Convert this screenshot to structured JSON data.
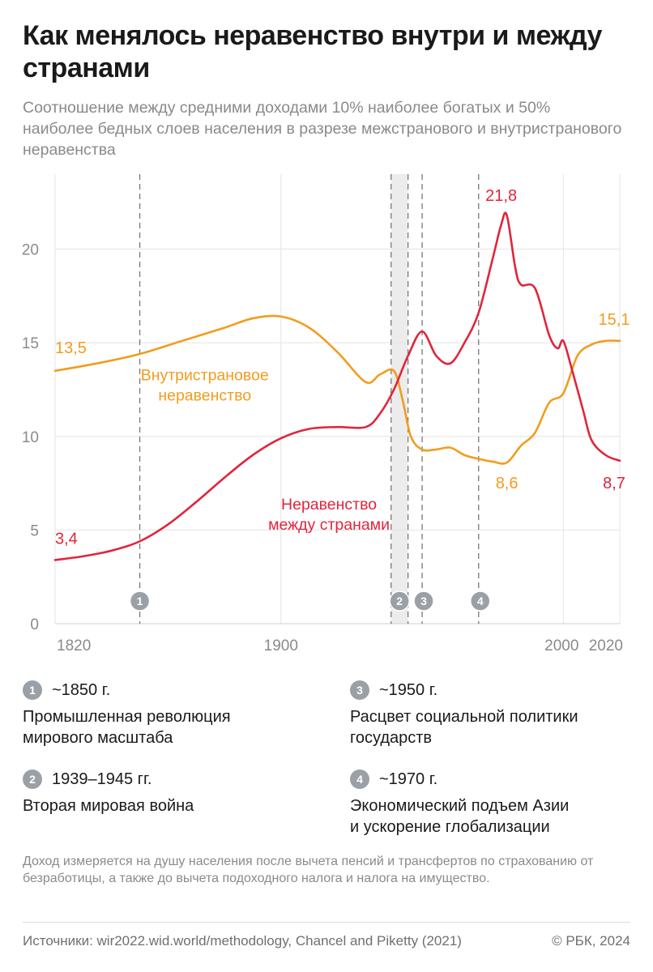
{
  "header": {
    "title": "Как менялось неравенство внутри и между странами",
    "subtitle": "Соотношение между средними доходами 10% наиболее богатых и 50% наиболее бедных слоев населения в разрезе межстранового и внутристранового неравенства"
  },
  "chart_data": {
    "type": "line",
    "xlim": [
      1820,
      2020
    ],
    "ylim": [
      0,
      24
    ],
    "x_ticks": [
      "1820",
      "1900",
      "2000",
      "2020"
    ],
    "y_ticks": [
      "0",
      "5",
      "10",
      "15",
      "20"
    ],
    "grid": true,
    "series": [
      {
        "name": "Внутристрановое неравенство",
        "color": "#f39c1e",
        "x": [
          1820,
          1835,
          1850,
          1865,
          1880,
          1890,
          1900,
          1910,
          1920,
          1930,
          1935,
          1940,
          1943,
          1946,
          1950,
          1955,
          1960,
          1965,
          1970,
          1975,
          1980,
          1985,
          1990,
          1995,
          2000,
          2005,
          2010,
          2015,
          2020
        ],
        "y": [
          13.5,
          13.9,
          14.4,
          15.1,
          15.8,
          16.3,
          16.4,
          15.8,
          14.5,
          12.9,
          13.3,
          13.5,
          12.0,
          10.0,
          9.3,
          9.3,
          9.4,
          9.0,
          8.8,
          8.65,
          8.6,
          9.5,
          10.2,
          11.8,
          12.3,
          14.3,
          14.9,
          15.1,
          15.1
        ],
        "labels": [
          {
            "text": "13,5",
            "x": 1820,
            "y": 13.5,
            "anchor": "start",
            "dy": -22
          },
          {
            "text": "8,6",
            "x": 1980,
            "y": 8.6,
            "anchor": "middle",
            "dy": 32
          },
          {
            "text": "15,1",
            "x": 2018,
            "y": 15.1,
            "anchor": "middle",
            "dy": -20
          }
        ],
        "annotation": {
          "lines": [
            "Внутристрановое",
            "неравенство"
          ],
          "x": 1873,
          "y": 13.0
        }
      },
      {
        "name": "Неравенство между странами",
        "color": "#e0253c",
        "x": [
          1820,
          1830,
          1840,
          1850,
          1860,
          1870,
          1880,
          1890,
          1900,
          1910,
          1920,
          1930,
          1935,
          1940,
          1945,
          1950,
          1955,
          1960,
          1965,
          1970,
          1975,
          1978,
          1980,
          1983,
          1985,
          1990,
          1995,
          1998,
          2000,
          2003,
          2007,
          2010,
          2015,
          2020
        ],
        "y": [
          3.4,
          3.6,
          3.9,
          4.4,
          5.3,
          6.5,
          7.8,
          9.0,
          9.9,
          10.4,
          10.5,
          10.5,
          11.2,
          12.5,
          14.3,
          15.6,
          14.3,
          13.9,
          15.0,
          16.6,
          19.5,
          21.3,
          21.8,
          19.0,
          18.1,
          17.9,
          15.4,
          14.7,
          15.1,
          13.6,
          11.4,
          9.8,
          9.0,
          8.7
        ],
        "labels": [
          {
            "text": "3,4",
            "x": 1820,
            "y": 3.4,
            "anchor": "start",
            "dy": -20
          },
          {
            "text": "21,8",
            "x": 1978,
            "y": 21.8,
            "anchor": "middle",
            "dy": -18
          },
          {
            "text": "8,7",
            "x": 2018,
            "y": 8.7,
            "anchor": "middle",
            "dy": 34
          }
        ],
        "annotation": {
          "lines": [
            "Неравенство",
            "между странами"
          ],
          "x": 1917,
          "y": 6.1
        }
      }
    ],
    "events": [
      {
        "id": "1",
        "x": 1850
      },
      {
        "id": "2",
        "x_start": 1939,
        "x_end": 1945
      },
      {
        "id": "3",
        "x": 1950
      },
      {
        "id": "4",
        "x": 1970
      }
    ]
  },
  "events": [
    {
      "id": "1",
      "date": "~1850 г.",
      "line1": "Промышленная революция",
      "line2": "мирового масштаба"
    },
    {
      "id": "2",
      "date": "1939–1945 гг.",
      "line1": "Вторая мировая война",
      "line2": ""
    },
    {
      "id": "3",
      "date": "~1950 г.",
      "line1": "Расцвет социальной политики",
      "line2": "государств"
    },
    {
      "id": "4",
      "date": "~1970 г.",
      "line1": "Экономический подъем Азии",
      "line2": "и ускорение глобализации"
    }
  ],
  "footer": {
    "note": "Доход измеряется на душу населения после вычета пенсий и трансфертов по страхованию от безработицы, а также до вычета подоходного налога и налога на имущество.",
    "sources": "Источники: wir2022.wid.world/methodology, Chancel and Piketty (2021)",
    "credit": "© РБК, 2024"
  }
}
